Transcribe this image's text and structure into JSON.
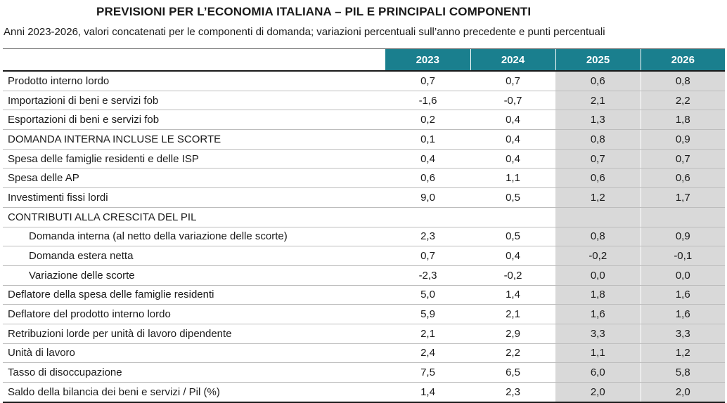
{
  "title": "PREVISIONI PER L’ECONOMIA ITALIANA – PIL E PRINCIPALI COMPONENTI",
  "subtitle": "Anni 2023-2026, valori concatenati per le componenti di domanda; variazioni percentuali sull’anno precedente e punti percentuali",
  "colors": {
    "header_bg": "#1a7f8e",
    "forecast_bg": "#d9d9d9"
  },
  "columns": [
    "2023",
    "2024",
    "2025",
    "2026"
  ],
  "rows": [
    {
      "label": "Prodotto interno lordo",
      "values": [
        "0,7",
        "0,7",
        "0,6",
        "0,8"
      ]
    },
    {
      "label": "Importazioni di beni e servizi fob",
      "values": [
        "-1,6",
        "-0,7",
        "2,1",
        "2,2"
      ]
    },
    {
      "label": "Esportazioni di beni e servizi fob",
      "values": [
        "0,2",
        "0,4",
        "1,3",
        "1,8"
      ]
    },
    {
      "label": "DOMANDA INTERNA INCLUSE LE SCORTE",
      "values": [
        "0,1",
        "0,4",
        "0,8",
        "0,9"
      ]
    },
    {
      "label": "Spesa delle famiglie residenti e delle ISP",
      "values": [
        "0,4",
        "0,4",
        "0,7",
        "0,7"
      ]
    },
    {
      "label": "Spesa delle AP",
      "values": [
        "0,6",
        "1,1",
        "0,6",
        "0,6"
      ]
    },
    {
      "label": "Investimenti fissi lordi",
      "values": [
        "9,0",
        "0,5",
        "1,2",
        "1,7"
      ]
    },
    {
      "label": "CONTRIBUTI ALLA CRESCITA DEL PIL",
      "values": [
        "",
        "",
        "",
        ""
      ]
    },
    {
      "label": "Domanda interna (al netto della variazione delle scorte)",
      "indent": true,
      "values": [
        "2,3",
        "0,5",
        "0,8",
        "0,9"
      ]
    },
    {
      "label": "Domanda estera netta",
      "indent": true,
      "values": [
        "0,7",
        "0,4",
        "-0,2",
        "-0,1"
      ]
    },
    {
      "label": "Variazione delle scorte",
      "indent": true,
      "values": [
        "-2,3",
        "-0,2",
        "0,0",
        "0,0"
      ]
    },
    {
      "label": "Deflatore della spesa delle famiglie residenti",
      "values": [
        "5,0",
        "1,4",
        "1,8",
        "1,6"
      ]
    },
    {
      "label": "Deflatore del prodotto interno lordo",
      "values": [
        "5,9",
        "2,1",
        "1,6",
        "1,6"
      ]
    },
    {
      "label": "Retribuzioni lorde per unità di lavoro dipendente",
      "values": [
        "2,1",
        "2,9",
        "3,3",
        "3,3"
      ]
    },
    {
      "label": "Unità di lavoro",
      "values": [
        "2,4",
        "2,2",
        "1,1",
        "1,2"
      ]
    },
    {
      "label": "Tasso di disoccupazione",
      "values": [
        "7,5",
        "6,5",
        "6,0",
        "5,8"
      ]
    },
    {
      "label": "Saldo della bilancia dei beni e servizi / Pil (%)",
      "values": [
        "1,4",
        "2,3",
        "2,0",
        "2,0"
      ]
    }
  ]
}
